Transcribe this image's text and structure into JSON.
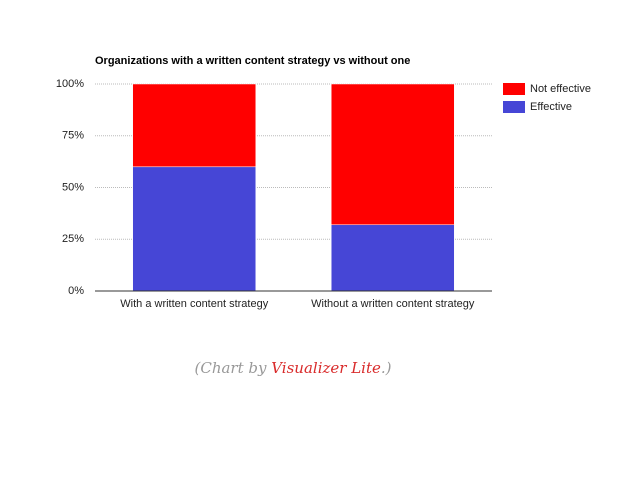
{
  "chart_data": {
    "type": "stacked-bar",
    "title": "Organizations with a written content strategy vs without one",
    "categories": [
      "With a written content strategy",
      "Without a written content strategy"
    ],
    "series": [
      {
        "name": "Effective",
        "color": "#4646d6",
        "values": [
          60,
          32
        ]
      },
      {
        "name": "Not effective",
        "color": "#ff0000",
        "values": [
          40,
          68
        ]
      }
    ],
    "ylim": [
      0,
      100
    ],
    "yticks": [
      {
        "value": 0,
        "label": "0%"
      },
      {
        "value": 25,
        "label": "25%"
      },
      {
        "value": 50,
        "label": "50%"
      },
      {
        "value": 75,
        "label": "75%"
      },
      {
        "value": 100,
        "label": "100%"
      }
    ],
    "grid": true,
    "legend": "right"
  },
  "caption": {
    "prefix": "(Chart by ",
    "link": "Visualizer Lite",
    "suffix": ".)"
  }
}
